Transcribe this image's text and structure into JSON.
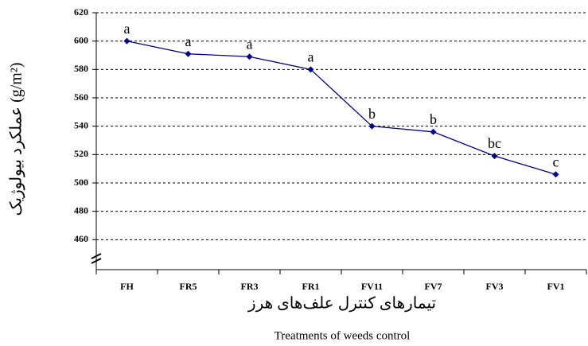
{
  "chart_data": {
    "type": "line",
    "y_label": "عملکرد بیولوژیک (g/m²)",
    "x_label": "تیمارهای کنترل علف‌های هرز",
    "x_label_en": "Treatments of weeds control",
    "categories": [
      "FH",
      "FR5",
      "FR3",
      "FR1",
      "FV11",
      "FV7",
      "FV3",
      "FV1"
    ],
    "values": [
      600,
      591,
      589,
      580,
      540,
      536,
      519,
      506
    ],
    "annotations": [
      "a",
      "a",
      "a",
      "a",
      "b",
      "b",
      "bc",
      "c"
    ],
    "color": "#000080",
    "ylim": [
      440,
      620
    ],
    "yticks": [
      460,
      480,
      500,
      520,
      540,
      560,
      580,
      600,
      620
    ],
    "grid": true
  }
}
